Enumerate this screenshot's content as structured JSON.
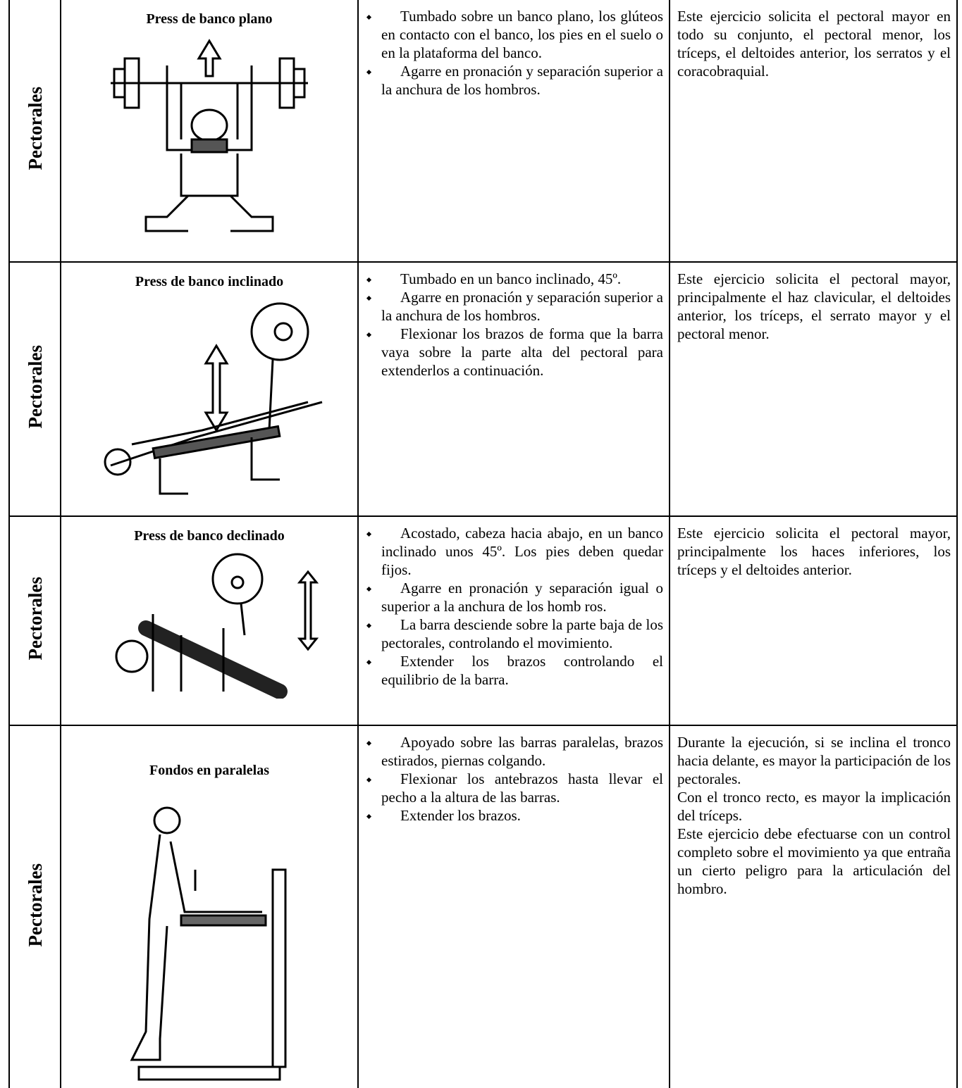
{
  "table": {
    "rows": [
      {
        "muscle": "Pectorales",
        "title": "Press de banco plano",
        "steps": [
          "Tumbado sobre un banco plano, los glúteos en contacto con el banco, los pies en el suelo o en la plataforma del banco.",
          "Agarre en pronación y separación superior a la anchura de los hombros."
        ],
        "description": [
          "Este ejercicio solicita el pectoral mayor en todo su conjunto, el pectoral menor, los tríceps, el deltoides anterior, los serratos y el coracobraquial."
        ]
      },
      {
        "muscle": "Pectorales",
        "title": "Press de banco inclinado",
        "steps": [
          "Tumbado en un banco inclinado, 45º.",
          "Agarre en pronación y separación superior a la anchura de los hombros.",
          "Flexionar los brazos de forma que la barra vaya sobre la parte alta del pectoral para extenderlos a continuación."
        ],
        "description": [
          "Este ejercicio solicita el pectoral mayor, principalmente el haz clavicular, el deltoides anterior, los tríceps, el serrato mayor y el pectoral menor."
        ]
      },
      {
        "muscle": "Pectorales",
        "title": "Press de banco declinado",
        "steps": [
          "Acostado, cabeza hacia abajo, en un banco inclinado unos 45º. Los pies deben quedar fijos.",
          "Agarre en pronación y separación igual o superior a la anchura de los homb ros.",
          "La barra desciende sobre la parte baja de los pectorales, controlando el movimiento.",
          "Extender los brazos controlando el equilibrio de la barra."
        ],
        "description": [
          "Este ejercicio solicita el pectoral mayor, principalmente los haces inferiores, los tríceps y el deltoides anterior."
        ]
      },
      {
        "muscle": "Pectorales",
        "title": "Fondos en paralelas",
        "steps": [
          "Apoyado sobre las barras paralelas, brazos estirados, piernas colgando.",
          "Flexionar los antebrazos hasta llevar el pecho a la altura  de las barras.",
          "Extender los brazos."
        ],
        "description": [
          "Durante la ejecución, si se inclina el tronco hacia delante, es mayor la participación de los pectorales.",
          "Con el tronco recto, es mayor la implicación del tríceps.",
          "Este ejercicio debe efectuarse con un control completo sobre el movimiento ya que entraña un cierto peligro para la articulación del hombro."
        ]
      }
    ]
  }
}
